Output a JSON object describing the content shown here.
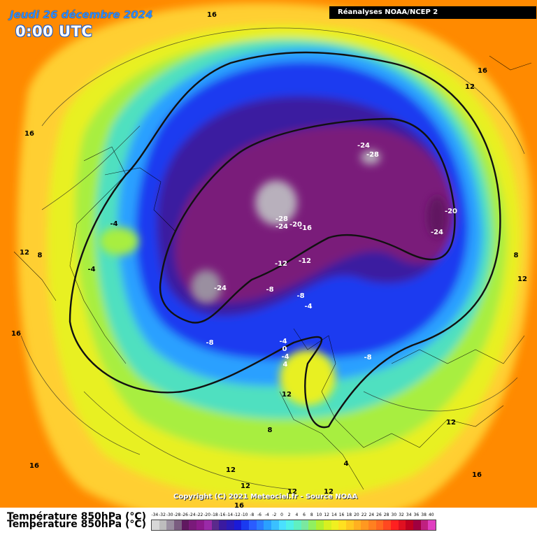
{
  "header": {
    "date": "Jeudi 26 décembre 2024",
    "time": "0:00 UTC",
    "source_label": "Réanalyses NOAA/NCEP 2"
  },
  "footer": {
    "copyright": "Copyright (C) 2021 Meteociel.fr - Source NOAA",
    "legend_title": "Température 850hPa (°C)"
  },
  "legend": {
    "values": [
      "-34",
      "-32",
      "-30",
      "-28",
      "-26",
      "-24",
      "-22",
      "-20",
      "-18",
      "-16",
      "-14",
      "-12",
      "-10",
      "-8",
      "-6",
      "-4",
      "-2",
      "0",
      "2",
      "4",
      "6",
      "8",
      "10",
      "12",
      "14",
      "16",
      "18",
      "20",
      "22",
      "24",
      "26",
      "28",
      "30",
      "32",
      "34",
      "36",
      "38",
      "40"
    ],
    "colors": [
      "#d8d8d8",
      "#bdbdbd",
      "#9a8fa0",
      "#7a5d80",
      "#601860",
      "#7a1a7a",
      "#8c1a8c",
      "#9a2aa8",
      "#5a2a8c",
      "#3a1aa0",
      "#2a1ab8",
      "#1a1ad8",
      "#1a3af0",
      "#2a5cff",
      "#2a7cff",
      "#2aa0ff",
      "#3ac0ff",
      "#4ae0ff",
      "#50f0e8",
      "#60f0c0",
      "#7ae8a0",
      "#90f060",
      "#b0f030",
      "#d8f020",
      "#f0f020",
      "#ffe020",
      "#ffc820",
      "#ffb020",
      "#ff9820",
      "#ff8020",
      "#ff6820",
      "#ff4820",
      "#ff2020",
      "#e01020",
      "#c00020",
      "#a00040",
      "#c02080",
      "#e040c0"
    ]
  },
  "map_labels": [
    "16",
    "16",
    "12",
    "16",
    "-24",
    "-28",
    "-28",
    "-24",
    "-20",
    "-16",
    "-20",
    "-24",
    "-4",
    "12",
    "8",
    "-4",
    "-12",
    "-12",
    "-24",
    "-8",
    "-8",
    "-4",
    "-8",
    "-4",
    "0",
    "-4",
    "4",
    "-8",
    "8",
    "12",
    "12",
    "16",
    "8",
    "12",
    "12",
    "4",
    "12",
    "16",
    "16",
    "12",
    "16",
    "12"
  ],
  "colors": {
    "warm": "#ff8a00",
    "cold_core": "#7a1a7a",
    "ice": "#b8b0bc"
  }
}
